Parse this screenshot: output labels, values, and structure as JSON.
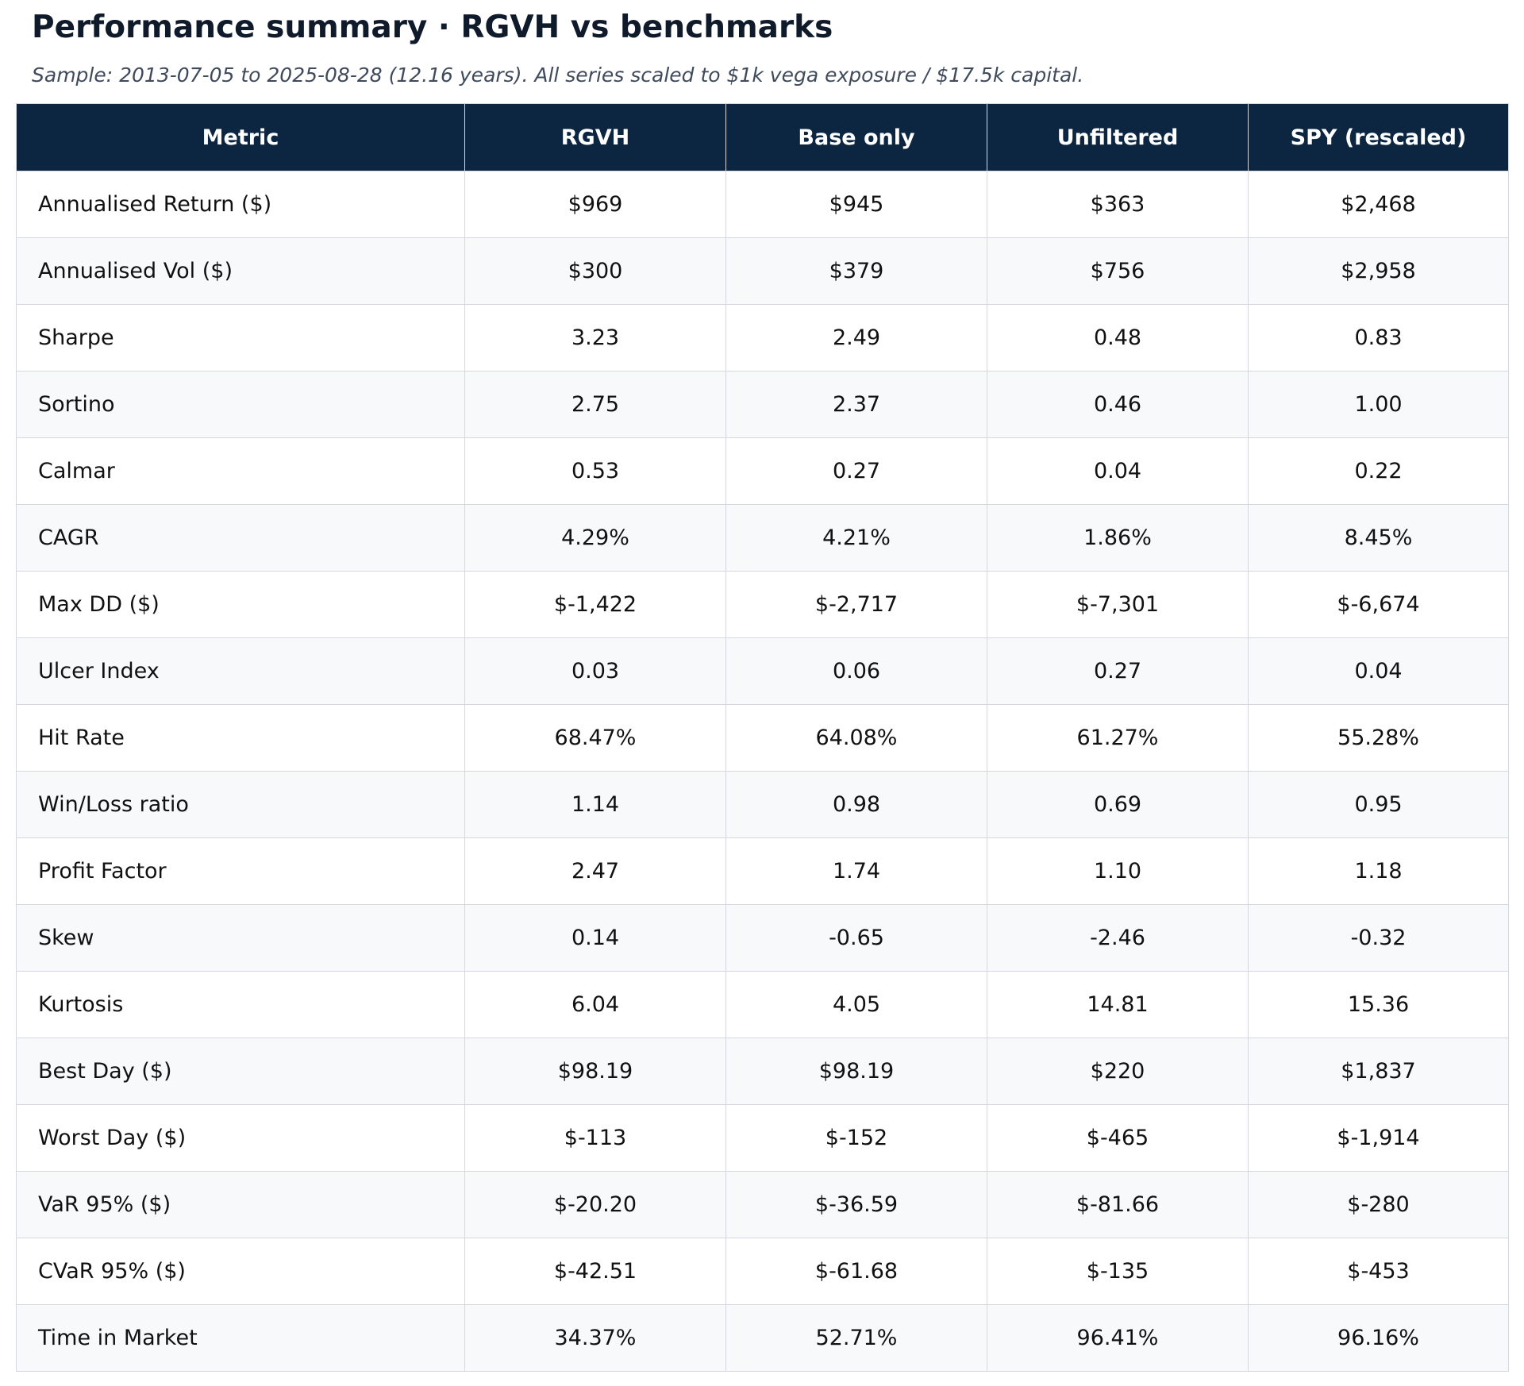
{
  "title": "Performance summary  ·  RGVH vs benchmarks",
  "subtitle": "Sample: 2013-07-05 to 2025-08-28 (12.16 years).  All series scaled to $1k vega exposure / $17.5k capital.",
  "colors": {
    "header_bg": "#0c2540",
    "header_text": "#ffffff",
    "row_alt": "#f8f9fb",
    "border": "#d4d8de"
  },
  "table": {
    "headers": [
      "Metric",
      "RGVH",
      "Base only",
      "Unfiltered",
      "SPY (rescaled)"
    ],
    "rows": [
      [
        "Annualised Return ($)",
        "$969",
        "$945",
        "$363",
        "$2,468"
      ],
      [
        "Annualised Vol ($)",
        "$300",
        "$379",
        "$756",
        "$2,958"
      ],
      [
        "Sharpe",
        "3.23",
        "2.49",
        "0.48",
        "0.83"
      ],
      [
        "Sortino",
        "2.75",
        "2.37",
        "0.46",
        "1.00"
      ],
      [
        "Calmar",
        "0.53",
        "0.27",
        "0.04",
        "0.22"
      ],
      [
        "CAGR",
        "4.29%",
        "4.21%",
        "1.86%",
        "8.45%"
      ],
      [
        "Max DD ($)",
        "$-1,422",
        "$-2,717",
        "$-7,301",
        "$-6,674"
      ],
      [
        "Ulcer Index",
        "0.03",
        "0.06",
        "0.27",
        "0.04"
      ],
      [
        "Hit Rate",
        "68.47%",
        "64.08%",
        "61.27%",
        "55.28%"
      ],
      [
        "Win/Loss ratio",
        "1.14",
        "0.98",
        "0.69",
        "0.95"
      ],
      [
        "Profit Factor",
        "2.47",
        "1.74",
        "1.10",
        "1.18"
      ],
      [
        "Skew",
        "0.14",
        "-0.65",
        "-2.46",
        "-0.32"
      ],
      [
        "Kurtosis",
        "6.04",
        "4.05",
        "14.81",
        "15.36"
      ],
      [
        "Best Day ($)",
        "$98.19",
        "$98.19",
        "$220",
        "$1,837"
      ],
      [
        "Worst Day ($)",
        "$-113",
        "$-152",
        "$-465",
        "$-1,914"
      ],
      [
        "VaR 95% ($)",
        "$-20.20",
        "$-36.59",
        "$-81.66",
        "$-280"
      ],
      [
        "CVaR 95% ($)",
        "$-42.51",
        "$-61.68",
        "$-135",
        "$-453"
      ],
      [
        "Time in Market",
        "34.37%",
        "52.71%",
        "96.41%",
        "96.16%"
      ]
    ]
  }
}
